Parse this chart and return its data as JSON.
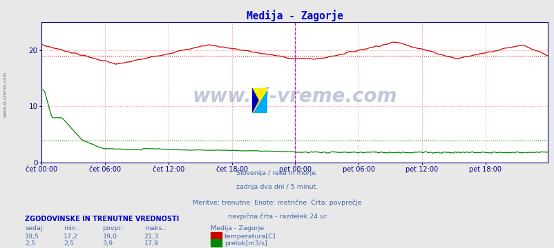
{
  "title": "Medija - Zagorje",
  "title_color": "#0000cc",
  "bg_color": "#e8e8e8",
  "plot_bg_color": "#ffffff",
  "x_label_color": "#000080",
  "text_color": "#4466aa",
  "watermark": "www.si-vreme.com",
  "watermark_color": "#1a3a6a",
  "subtitle_lines": [
    "Slovenija / reke in morje.",
    "zadnja dva dni / 5 minut.",
    "Meritve: trenutne  Enote: metrične  Črta: povprečje",
    "navpična črta - razdelek 24 ur"
  ],
  "x_ticks": [
    "čet 00:00",
    "čet 06:00",
    "čet 12:00",
    "čet 18:00",
    "pet 00:00",
    "pet 06:00",
    "pet 12:00",
    "pet 18:00"
  ],
  "x_tick_positions": [
    0,
    72,
    144,
    216,
    288,
    360,
    432,
    504
  ],
  "total_points": 576,
  "ylim": [
    0,
    25
  ],
  "y_ticks": [
    0,
    10,
    20
  ],
  "temp_avg": 19.0,
  "flow_avg": 3.9,
  "temp_color": "#cc0000",
  "flow_color": "#008800",
  "vline_color": "#cc00cc",
  "vline_pos": 288,
  "legend_label_temp": "temperatura[C]",
  "legend_label_flow": "pretok[m3/s]",
  "stats_header": "ZGODOVINSKE IN TRENUTNE VREDNOSTI",
  "stats_cols": [
    "sedaj:",
    "min.:",
    "povpr.:",
    "maks.:",
    "Medija - Zagorje"
  ],
  "stats_temp": [
    "19,5",
    "17,2",
    "19,0",
    "21,3"
  ],
  "stats_flow": [
    "2,5",
    "2,5",
    "3,9",
    "17,9"
  ]
}
